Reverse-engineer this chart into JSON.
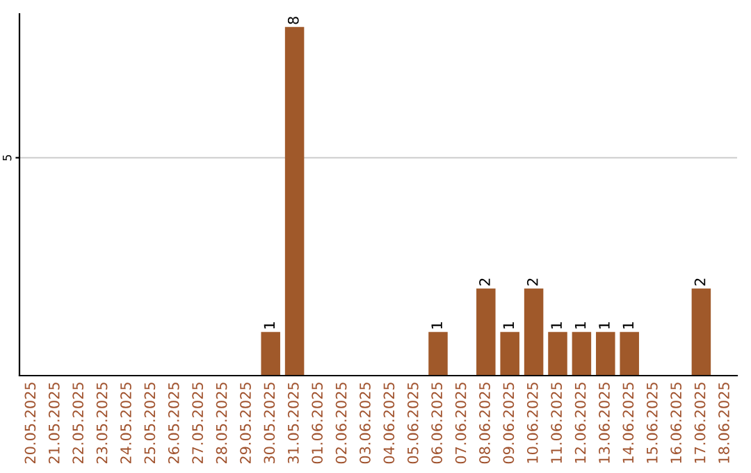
{
  "chart_data": {
    "type": "bar",
    "categories": [
      "20.05.2025",
      "21.05.2025",
      "22.05.2025",
      "23.05.2025",
      "24.05.2025",
      "25.05.2025",
      "26.05.2025",
      "27.05.2025",
      "28.05.2025",
      "29.05.2025",
      "30.05.2025",
      "31.05.2025",
      "01.06.2025",
      "02.06.2025",
      "03.06.2025",
      "04.06.2025",
      "05.06.2025",
      "06.06.2025",
      "07.06.2025",
      "08.06.2025",
      "09.06.2025",
      "10.06.2025",
      "11.06.2025",
      "12.06.2025",
      "13.06.2025",
      "14.06.2025",
      "15.06.2025",
      "16.06.2025",
      "17.06.2025",
      "18.06.2025"
    ],
    "values": [
      0,
      0,
      0,
      0,
      0,
      0,
      0,
      0,
      0,
      0,
      1,
      8,
      0,
      0,
      0,
      0,
      0,
      1,
      0,
      2,
      1,
      2,
      1,
      1,
      1,
      1,
      0,
      0,
      2,
      0
    ],
    "value_labels": [
      null,
      null,
      null,
      null,
      null,
      null,
      null,
      null,
      null,
      null,
      "1",
      "8",
      null,
      null,
      null,
      null,
      null,
      "1",
      null,
      "2",
      "1",
      "2",
      "1",
      "1",
      "1",
      "1",
      null,
      null,
      "2",
      null
    ],
    "color": "#a0592a",
    "ylim": [
      0,
      8.3
    ],
    "yticks": [
      5
    ],
    "grid": "y"
  }
}
